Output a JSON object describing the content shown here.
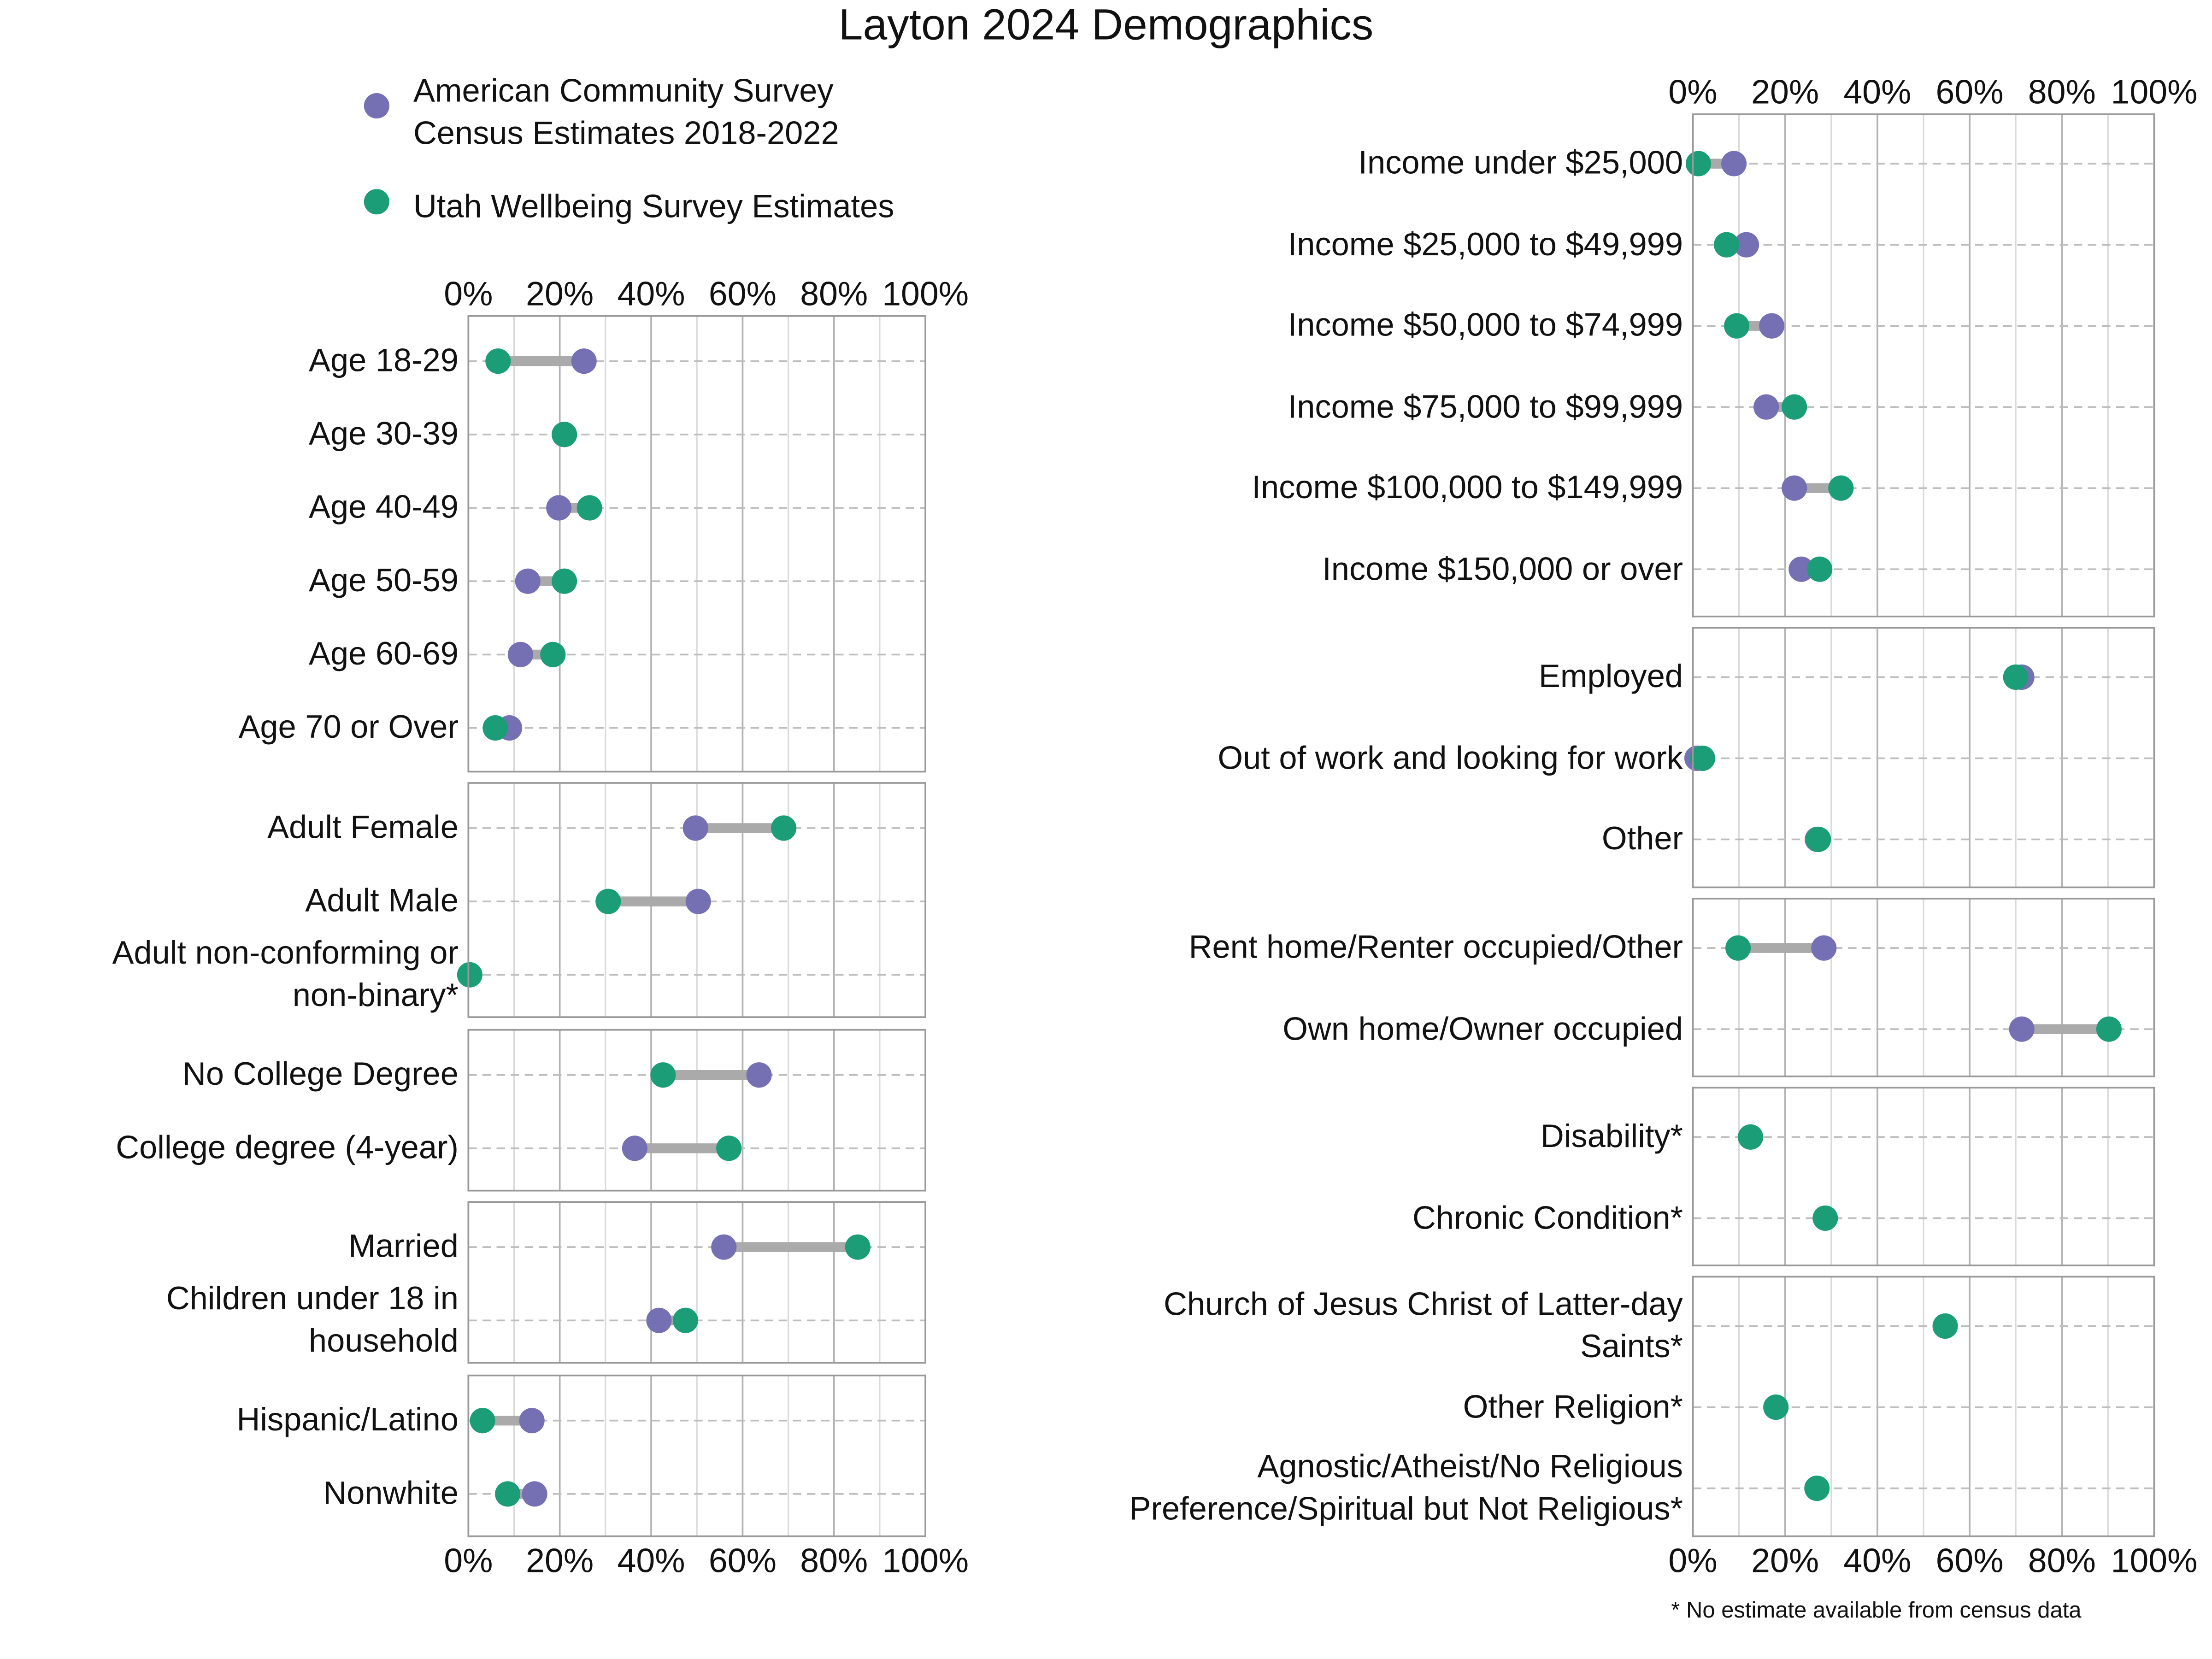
{
  "chart_data": {
    "type": "dumbbell",
    "title": "Layton 2024 Demographics",
    "series": [
      {
        "name": "American Community Survey\nCensus Estimates 2018-2022",
        "color": "#7570b3"
      },
      {
        "name": "Utah Wellbeing Survey Estimates",
        "color": "#1b9e77"
      }
    ],
    "connector_color": "#aaaaaa",
    "xlim": [
      0,
      100
    ],
    "xticks": [
      {
        "value": 0,
        "label": "0%"
      },
      {
        "value": 20,
        "label": "20%"
      },
      {
        "value": 40,
        "label": "40%"
      },
      {
        "value": 60,
        "label": "60%"
      },
      {
        "value": 80,
        "label": "80%"
      },
      {
        "value": 100,
        "label": "100%"
      }
    ],
    "xticks_minor": [
      10,
      30,
      50,
      70,
      90
    ],
    "footnote": "* No estimate available from census data",
    "panels": [
      {
        "categories": [
          "Age 18-29",
          "Age 30-39",
          "Age 40-49",
          "Age 50-59",
          "Age 60-69",
          "Age 70 or Over"
        ],
        "series": [
          {
            "values": [
              25.3,
              21,
              19.8,
              13,
              11.4,
              9
            ]
          },
          {
            "values": [
              6.5,
              21,
              26.5,
              21,
              18.5,
              5.9
            ]
          }
        ]
      },
      {
        "categories": [
          "Adult Female",
          "Adult Male",
          "Adult non-conforming or\nnon-binary*"
        ],
        "series": [
          {
            "values": [
              49.7,
              50.3,
              null
            ]
          },
          {
            "values": [
              69,
              30.6,
              0.3
            ]
          }
        ]
      },
      {
        "categories": [
          "No College Degree",
          "College degree (4-year)"
        ],
        "series": [
          {
            "values": [
              63.6,
              36.4
            ]
          },
          {
            "values": [
              42.6,
              57
            ]
          }
        ]
      },
      {
        "categories": [
          "Married",
          "Children under 18 in\nhousehold"
        ],
        "series": [
          {
            "values": [
              55.9,
              41.7
            ]
          },
          {
            "values": [
              85.2,
              47.5
            ]
          }
        ]
      },
      {
        "categories": [
          "Hispanic/Latino",
          "Nonwhite"
        ],
        "series": [
          {
            "values": [
              13.9,
              14.5
            ]
          },
          {
            "values": [
              3.1,
              8.6
            ]
          }
        ]
      },
      {
        "categories": [
          "Income under $25,000",
          "Income $25,000 to $49,999",
          "Income $50,000 to $74,999",
          "Income $75,000 to $99,999",
          "Income $100,000 to $149,999",
          "Income $150,000 or over"
        ],
        "series": [
          {
            "values": [
              8.9,
              11.6,
              17.1,
              15.9,
              22,
              23.5
            ]
          },
          {
            "values": [
              1.2,
              7.3,
              9.5,
              22,
              32.1,
              27.5
            ]
          }
        ]
      },
      {
        "categories": [
          "Employed",
          "Out of work and looking for work",
          "Other"
        ],
        "series": [
          {
            "values": [
              71.3,
              0.9,
              27
            ]
          },
          {
            "values": [
              70,
              2.1,
              27.2
            ]
          }
        ]
      },
      {
        "categories": [
          "Rent home/Renter occupied/Other",
          "Own home/Owner occupied"
        ],
        "series": [
          {
            "values": [
              28.4,
              71.3
            ]
          },
          {
            "values": [
              9.8,
              90.2
            ]
          }
        ]
      },
      {
        "categories": [
          "Disability*",
          "Chronic Condition*"
        ],
        "series": [
          {
            "values": [
              null,
              null
            ]
          },
          {
            "values": [
              12.5,
              28.7
            ]
          }
        ]
      },
      {
        "categories": [
          "Church of Jesus Christ of Latter-day\nSaints*",
          "Other Religion*",
          "Agnostic/Atheist/No Religious\nPreference/Spiritual but Not Religious*"
        ],
        "series": [
          {
            "values": [
              null,
              null,
              null
            ]
          },
          {
            "values": [
              54.7,
              18,
              26.9
            ]
          }
        ]
      }
    ]
  }
}
